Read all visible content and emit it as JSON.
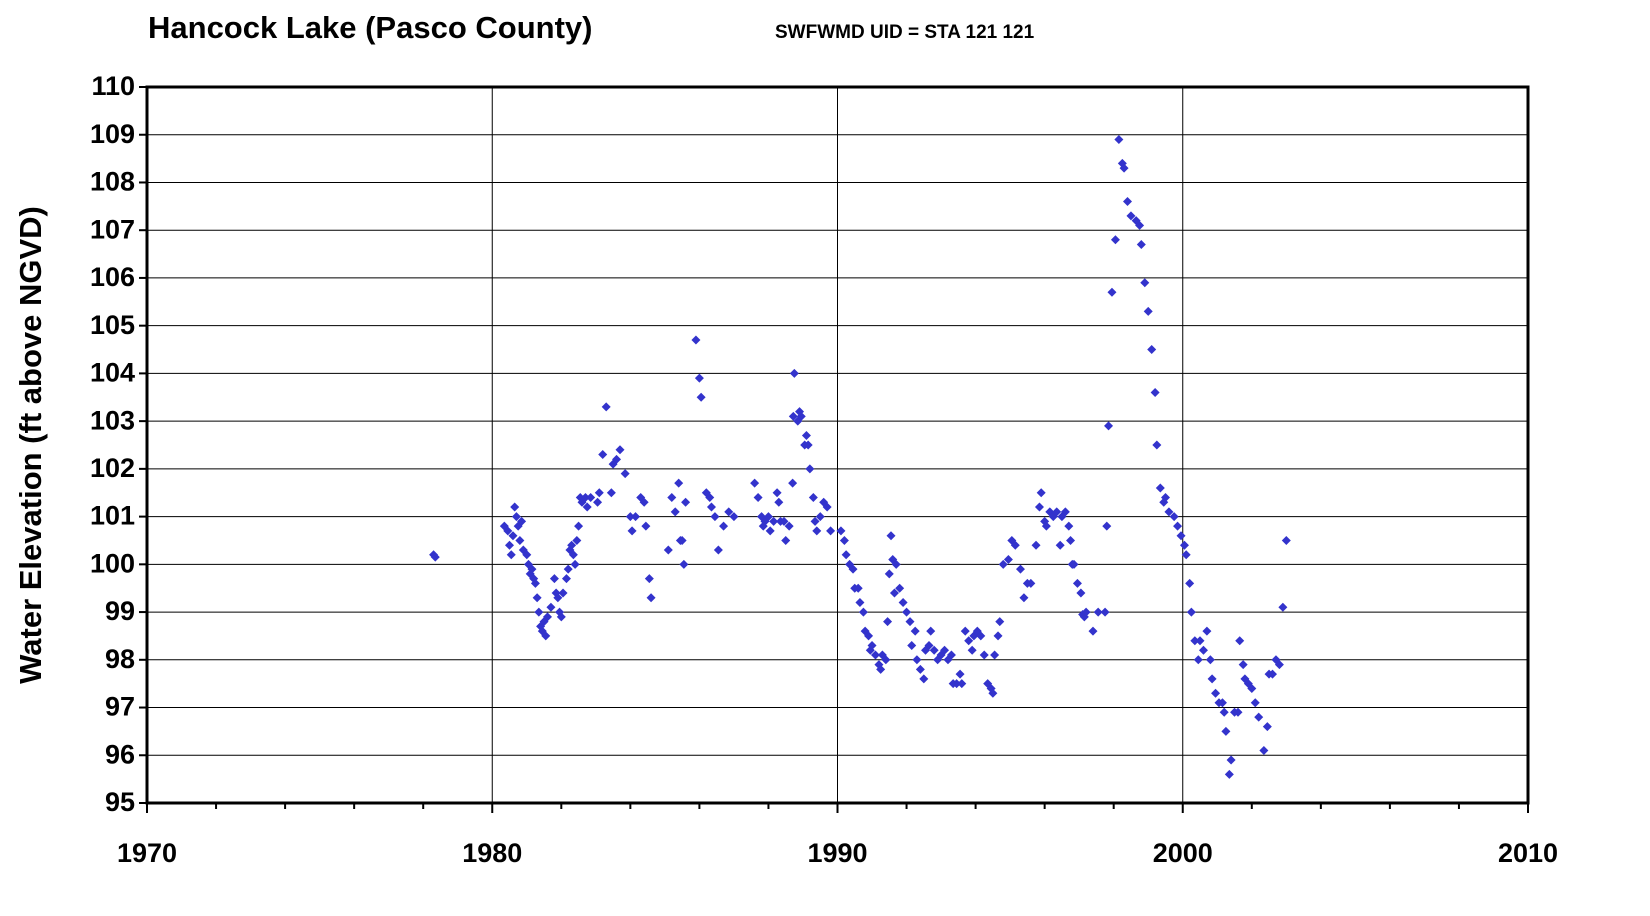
{
  "chart_data": {
    "type": "scatter",
    "title": "Hancock Lake (Pasco County)",
    "subtitle": "SWFWMD UID = STA 121 121",
    "y_label": "Water Elevation (ft above NGVD)",
    "color": "#3333cc",
    "grid": true,
    "xlim": [
      1970,
      2010
    ],
    "xticks": [
      1970,
      1980,
      1990,
      2000,
      2010
    ],
    "ylim": [
      95,
      110
    ],
    "yticks": [
      95,
      96,
      97,
      98,
      99,
      100,
      101,
      102,
      103,
      104,
      105,
      106,
      107,
      108,
      109,
      110
    ],
    "x": [
      1978.3,
      1978.35,
      1980.35,
      1980.45,
      1980.5,
      1980.55,
      1980.6,
      1980.65,
      1980.7,
      1980.75,
      1980.8,
      1980.85,
      1980.9,
      1981.0,
      1981.05,
      1981.1,
      1981.15,
      1981.2,
      1981.25,
      1981.3,
      1981.35,
      1981.4,
      1981.45,
      1981.5,
      1981.55,
      1981.6,
      1981.7,
      1981.8,
      1981.85,
      1981.9,
      1981.95,
      1982.0,
      1982.05,
      1982.15,
      1982.2,
      1982.25,
      1982.3,
      1982.35,
      1982.4,
      1982.45,
      1982.5,
      1982.55,
      1982.6,
      1982.7,
      1982.75,
      1982.85,
      1983.05,
      1983.1,
      1983.2,
      1983.3,
      1983.45,
      1983.5,
      1983.6,
      1983.7,
      1983.85,
      1984.0,
      1984.05,
      1984.15,
      1984.3,
      1984.4,
      1984.45,
      1984.55,
      1984.6,
      1985.1,
      1985.2,
      1985.3,
      1985.4,
      1985.45,
      1985.5,
      1985.55,
      1985.6,
      1985.9,
      1986.0,
      1986.05,
      1986.2,
      1986.3,
      1986.35,
      1986.45,
      1986.55,
      1986.7,
      1986.85,
      1987.0,
      1987.6,
      1987.7,
      1987.8,
      1987.85,
      1987.9,
      1988.0,
      1988.05,
      1988.15,
      1988.25,
      1988.3,
      1988.35,
      1988.45,
      1988.5,
      1988.6,
      1988.7,
      1988.72,
      1988.75,
      1988.85,
      1988.9,
      1988.95,
      1989.05,
      1989.1,
      1989.15,
      1989.2,
      1989.3,
      1989.35,
      1989.4,
      1989.5,
      1989.6,
      1989.7,
      1989.8,
      1990.1,
      1990.2,
      1990.25,
      1990.35,
      1990.45,
      1990.5,
      1990.6,
      1990.65,
      1990.75,
      1990.8,
      1990.9,
      1990.95,
      1991.0,
      1991.1,
      1991.2,
      1991.25,
      1991.3,
      1991.4,
      1991.45,
      1991.5,
      1991.55,
      1991.6,
      1991.65,
      1991.7,
      1991.8,
      1991.9,
      1992.0,
      1992.1,
      1992.15,
      1992.25,
      1992.3,
      1992.4,
      1992.5,
      1992.55,
      1992.65,
      1992.7,
      1992.8,
      1992.9,
      1993.0,
      1993.1,
      1993.2,
      1993.3,
      1993.35,
      1993.45,
      1993.55,
      1993.6,
      1993.7,
      1993.8,
      1993.9,
      1993.95,
      1994.05,
      1994.15,
      1994.25,
      1994.35,
      1994.45,
      1994.5,
      1994.55,
      1994.65,
      1994.7,
      1994.8,
      1994.95,
      1995.05,
      1995.15,
      1995.3,
      1995.4,
      1995.5,
      1995.6,
      1995.75,
      1995.85,
      1995.9,
      1996.0,
      1996.05,
      1996.15,
      1996.25,
      1996.35,
      1996.45,
      1996.5,
      1996.6,
      1996.7,
      1996.75,
      1996.8,
      1996.85,
      1996.95,
      1997.05,
      1997.1,
      1997.15,
      1997.2,
      1997.4,
      1997.55,
      1997.75,
      1997.8,
      1997.85,
      1997.95,
      1998.05,
      1998.15,
      1998.25,
      1998.3,
      1998.4,
      1998.5,
      1998.65,
      1998.75,
      1998.8,
      1998.9,
      1999.0,
      1999.1,
      1999.2,
      1999.25,
      1999.35,
      1999.45,
      1999.5,
      1999.6,
      1999.75,
      1999.85,
      1999.95,
      2000.05,
      2000.1,
      2000.2,
      2000.25,
      2000.35,
      2000.45,
      2000.5,
      2000.6,
      2000.7,
      2000.8,
      2000.85,
      2000.95,
      2001.05,
      2001.15,
      2001.2,
      2001.25,
      2001.35,
      2001.4,
      2001.5,
      2001.6,
      2001.65,
      2001.75,
      2001.8,
      2001.9,
      2002.0,
      2002.1,
      2002.2,
      2002.35,
      2002.45,
      2002.5,
      2002.6,
      2002.7,
      2002.8,
      2002.9,
      2003.0
    ],
    "values": [
      100.2,
      100.15,
      100.8,
      100.7,
      100.4,
      100.2,
      100.6,
      101.2,
      101.0,
      100.8,
      100.5,
      100.9,
      100.3,
      100.2,
      100.0,
      99.8,
      99.9,
      99.7,
      99.6,
      99.3,
      99.0,
      98.7,
      98.6,
      98.8,
      98.5,
      98.9,
      99.1,
      99.7,
      99.4,
      99.3,
      99.0,
      98.9,
      99.4,
      99.7,
      99.9,
      100.3,
      100.4,
      100.2,
      100.0,
      100.5,
      100.8,
      101.4,
      101.3,
      101.4,
      101.2,
      101.4,
      101.3,
      101.5,
      102.3,
      103.3,
      101.5,
      102.1,
      102.2,
      102.4,
      101.9,
      101.0,
      100.7,
      101.0,
      101.4,
      101.3,
      100.8,
      99.7,
      99.3,
      100.3,
      101.4,
      101.1,
      101.7,
      100.5,
      100.5,
      100.0,
      101.3,
      104.7,
      103.9,
      103.5,
      101.5,
      101.4,
      101.2,
      101.0,
      100.3,
      100.8,
      101.1,
      101.0,
      101.7,
      101.4,
      101.0,
      100.8,
      100.9,
      101.0,
      100.7,
      100.9,
      101.5,
      101.3,
      100.9,
      100.9,
      100.5,
      100.8,
      101.7,
      103.1,
      104.0,
      103.0,
      103.2,
      103.1,
      102.5,
      102.7,
      102.5,
      102.0,
      101.4,
      100.9,
      100.7,
      101.0,
      101.3,
      101.2,
      100.7,
      100.7,
      100.5,
      100.2,
      100.0,
      99.9,
      99.5,
      99.5,
      99.2,
      99.0,
      98.6,
      98.5,
      98.2,
      98.3,
      98.1,
      97.9,
      97.8,
      98.1,
      98.0,
      98.8,
      99.8,
      100.6,
      100.1,
      99.4,
      100.0,
      99.5,
      99.2,
      99.0,
      98.8,
      98.3,
      98.6,
      98.0,
      97.8,
      97.6,
      98.2,
      98.3,
      98.6,
      98.2,
      98.0,
      98.1,
      98.2,
      98.0,
      98.1,
      97.5,
      97.5,
      97.7,
      97.5,
      98.6,
      98.4,
      98.2,
      98.5,
      98.6,
      98.5,
      98.1,
      97.5,
      97.4,
      97.3,
      98.1,
      98.5,
      98.8,
      100.0,
      100.1,
      100.5,
      100.4,
      99.9,
      99.3,
      99.6,
      99.6,
      100.4,
      101.2,
      101.5,
      100.9,
      100.8,
      101.1,
      101.0,
      101.1,
      100.4,
      101.0,
      101.1,
      100.8,
      100.5,
      100.0,
      100.0,
      99.6,
      99.4,
      98.95,
      98.9,
      99.0,
      98.6,
      99.0,
      99.0,
      100.8,
      102.9,
      105.7,
      106.8,
      108.9,
      108.4,
      108.3,
      107.6,
      107.3,
      107.2,
      107.1,
      106.7,
      105.9,
      105.3,
      104.5,
      103.6,
      102.5,
      101.6,
      101.3,
      101.4,
      101.1,
      101.0,
      100.8,
      100.6,
      100.4,
      100.2,
      99.6,
      99.0,
      98.4,
      98.0,
      98.4,
      98.2,
      98.6,
      98.0,
      97.6,
      97.3,
      97.1,
      97.1,
      96.9,
      96.5,
      95.6,
      95.9,
      96.9,
      96.9,
      98.4,
      97.9,
      97.6,
      97.5,
      97.4,
      97.1,
      96.8,
      96.1,
      96.6,
      97.7,
      97.7,
      98.0,
      97.9,
      99.1,
      100.5
    ]
  }
}
